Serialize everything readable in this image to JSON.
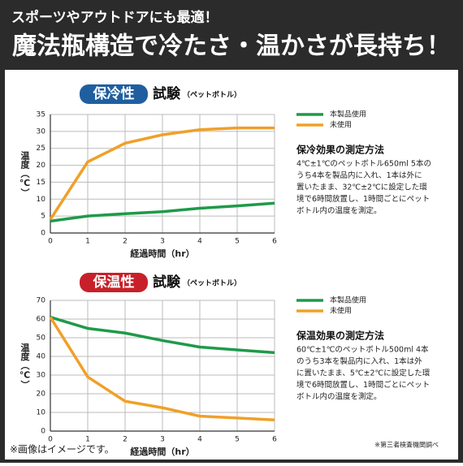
{
  "header": {
    "line1": "スポーツやアウトドアにも最適！",
    "line2": "魔法瓶構造で冷たさ・温かさが長持ち！"
  },
  "chart_data": [
    {
      "type": "line",
      "badge": "保冷性",
      "title": "試験",
      "subtitle": "（ペットボトル）",
      "x": [
        0,
        1,
        2,
        3,
        4,
        5,
        6
      ],
      "xlim": [
        0,
        6
      ],
      "xticks": [
        0,
        1,
        2,
        3,
        4,
        5,
        6
      ],
      "ylim": [
        0,
        35
      ],
      "yticks": [
        0,
        5,
        10,
        15,
        20,
        25,
        30,
        35
      ],
      "xlabel": "経過時間（hr）",
      "ylabel": "温度（℃）",
      "grid": true,
      "series": [
        {
          "name": "本製品使用",
          "color": "#1e9a4a",
          "values": [
            3.5,
            5,
            5.7,
            6.3,
            7.3,
            8,
            8.8
          ]
        },
        {
          "name": "未使用",
          "color": "#f0a028",
          "values": [
            4,
            21,
            26.5,
            29,
            30.5,
            31,
            31
          ]
        }
      ],
      "method_title": "保冷効果の測定方法",
      "method_text": [
        "4℃±1℃のペットボトル650ml 5本の",
        "うち4本を製品内に入れ、1本は外に",
        "置いたまま、32℃±2℃に設定した環",
        "境で6時間放置し、1時間ごとにペット",
        "ボトル内の温度を測定。"
      ]
    },
    {
      "type": "line",
      "badge": "保温性",
      "title": "試験",
      "subtitle": "（ペットボトル）",
      "x": [
        0,
        1,
        2,
        3,
        4,
        5,
        6
      ],
      "xlim": [
        0,
        6
      ],
      "xticks": [
        0,
        1,
        2,
        3,
        4,
        5,
        6
      ],
      "ylim": [
        0,
        70
      ],
      "yticks": [
        0,
        10,
        20,
        30,
        40,
        50,
        60,
        70
      ],
      "xlabel": "経過時間（hr）",
      "ylabel": "温度（℃）",
      "grid": true,
      "series": [
        {
          "name": "本製品使用",
          "color": "#1e9a4a",
          "values": [
            61,
            55,
            52.5,
            48.5,
            45,
            43.5,
            42
          ]
        },
        {
          "name": "未使用",
          "color": "#f0a028",
          "values": [
            61,
            29,
            16,
            12.5,
            8,
            7,
            6
          ]
        }
      ],
      "method_title": "保温効果の測定方法",
      "method_text": [
        "60℃±1℃のペットボトル500ml 4本",
        "のうち3本を製品内に入れ、1本は外",
        "に置いたまま、5℃±2℃に設定した環",
        "境で6時間放置し、1時間ごとにペット",
        "ボトル内の温度を測定。"
      ]
    }
  ],
  "footer": {
    "note_left": "※画像はイメージです。",
    "note_right": "※第三者検査機関調べ"
  }
}
